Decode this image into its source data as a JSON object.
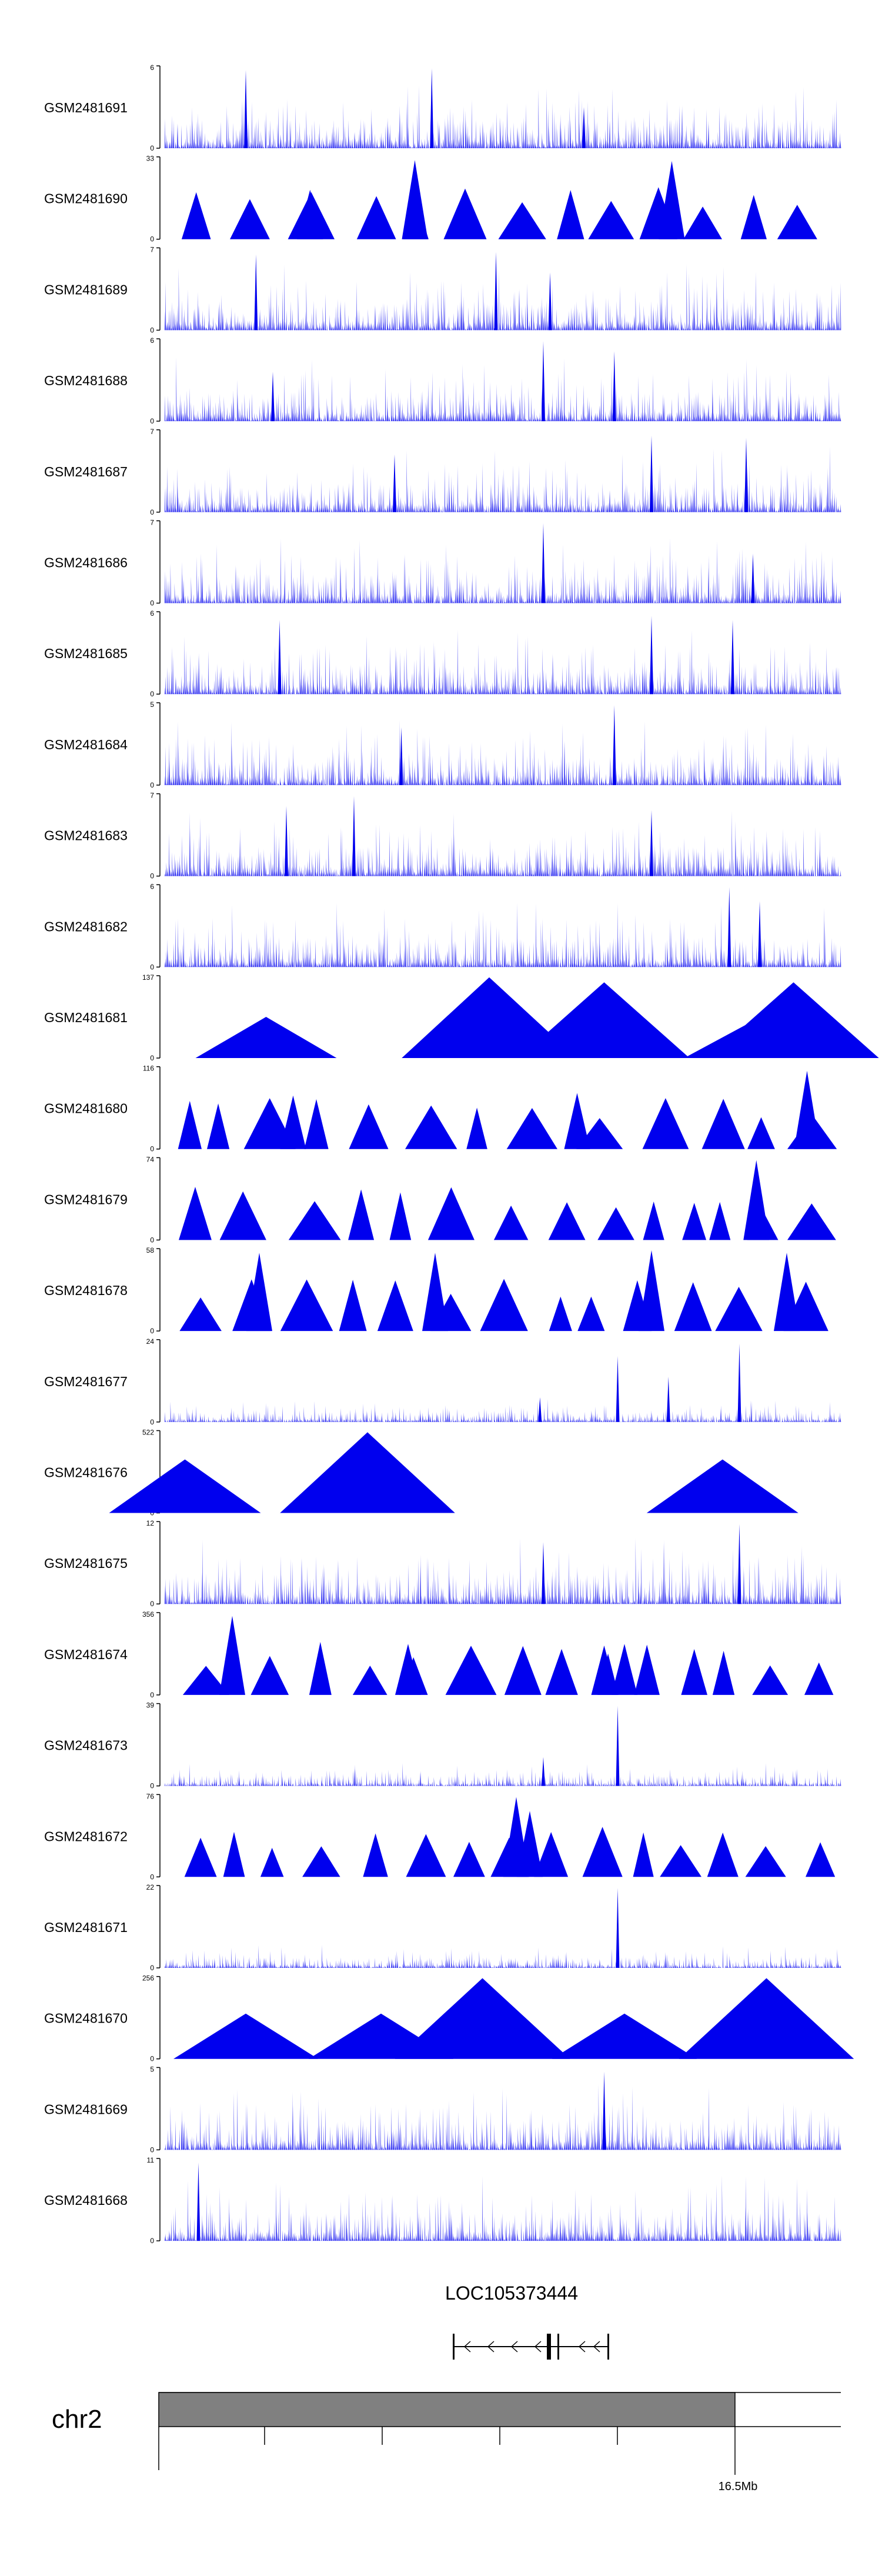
{
  "chart_data": {
    "type": "area",
    "title": "",
    "fill_color": "#0000EE",
    "tracks": [
      {
        "name": "GSM2481691",
        "ymax": "6",
        "ymin": "0",
        "style": "dense",
        "peaks": [
          {
            "x": 0.12,
            "h": 0.95
          },
          {
            "x": 0.395,
            "h": 0.97
          },
          {
            "x": 0.62,
            "h": 0.5
          }
        ]
      },
      {
        "name": "GSM2481690",
        "ymax": "33",
        "ymin": "0",
        "style": "triangles",
        "peaks": [
          {
            "x": 0.215,
            "h": 0.6
          },
          {
            "x": 0.37,
            "h": 0.96
          },
          {
            "x": 0.75,
            "h": 0.95
          }
        ]
      },
      {
        "name": "GSM2481689",
        "ymax": "7",
        "ymin": "0",
        "style": "dense",
        "peaks": [
          {
            "x": 0.135,
            "h": 0.92
          },
          {
            "x": 0.49,
            "h": 0.95
          },
          {
            "x": 0.57,
            "h": 0.7
          }
        ]
      },
      {
        "name": "GSM2481688",
        "ymax": "6",
        "ymin": "0",
        "style": "dense",
        "peaks": [
          {
            "x": 0.56,
            "h": 0.97
          },
          {
            "x": 0.665,
            "h": 0.85
          },
          {
            "x": 0.16,
            "h": 0.6
          }
        ]
      },
      {
        "name": "GSM2481687",
        "ymax": "7",
        "ymin": "0",
        "style": "dense",
        "peaks": [
          {
            "x": 0.72,
            "h": 0.93
          },
          {
            "x": 0.86,
            "h": 0.9
          },
          {
            "x": 0.34,
            "h": 0.7
          }
        ]
      },
      {
        "name": "GSM2481686",
        "ymax": "7",
        "ymin": "0",
        "style": "dense",
        "peaks": [
          {
            "x": 0.56,
            "h": 0.97
          },
          {
            "x": 0.87,
            "h": 0.6
          }
        ]
      },
      {
        "name": "GSM2481685",
        "ymax": "6",
        "ymin": "0",
        "style": "dense",
        "peaks": [
          {
            "x": 0.72,
            "h": 0.95
          },
          {
            "x": 0.84,
            "h": 0.9
          },
          {
            "x": 0.17,
            "h": 0.9
          }
        ]
      },
      {
        "name": "GSM2481684",
        "ymax": "5",
        "ymin": "0",
        "style": "dense",
        "peaks": [
          {
            "x": 0.665,
            "h": 0.97
          },
          {
            "x": 0.35,
            "h": 0.7
          }
        ]
      },
      {
        "name": "GSM2481683",
        "ymax": "7",
        "ymin": "0",
        "style": "dense",
        "peaks": [
          {
            "x": 0.28,
            "h": 0.97
          },
          {
            "x": 0.18,
            "h": 0.85
          },
          {
            "x": 0.72,
            "h": 0.8
          }
        ]
      },
      {
        "name": "GSM2481682",
        "ymax": "6",
        "ymin": "0",
        "style": "dense",
        "peaks": [
          {
            "x": 0.835,
            "h": 0.97
          },
          {
            "x": 0.88,
            "h": 0.8
          }
        ]
      },
      {
        "name": "GSM2481681",
        "ymax": "137",
        "ymin": "0",
        "style": "sparse",
        "peaks": [
          {
            "x": 0.15,
            "h": 0.5
          },
          {
            "x": 0.48,
            "h": 0.98
          },
          {
            "x": 0.65,
            "h": 0.92
          },
          {
            "x": 0.67,
            "h": 0.5
          },
          {
            "x": 0.87,
            "h": 0.45
          },
          {
            "x": 0.93,
            "h": 0.92
          }
        ]
      },
      {
        "name": "GSM2481680",
        "ymax": "116",
        "ymin": "0",
        "style": "triangles",
        "peaks": [
          {
            "x": 0.19,
            "h": 0.65
          },
          {
            "x": 0.61,
            "h": 0.68
          },
          {
            "x": 0.95,
            "h": 0.95
          }
        ]
      },
      {
        "name": "GSM2481679",
        "ymax": "74",
        "ymin": "0",
        "style": "triangles",
        "peaks": [
          {
            "x": 0.875,
            "h": 0.97
          }
        ]
      },
      {
        "name": "GSM2481678",
        "ymax": "58",
        "ymin": "0",
        "style": "triangles",
        "peaks": [
          {
            "x": 0.14,
            "h": 0.95
          },
          {
            "x": 0.4,
            "h": 0.95
          },
          {
            "x": 0.72,
            "h": 0.98
          },
          {
            "x": 0.92,
            "h": 0.95
          }
        ]
      },
      {
        "name": "GSM2481677",
        "ymax": "24",
        "ymin": "0",
        "style": "low",
        "peaks": [
          {
            "x": 0.67,
            "h": 0.8
          },
          {
            "x": 0.745,
            "h": 0.55
          },
          {
            "x": 0.85,
            "h": 0.95
          },
          {
            "x": 0.555,
            "h": 0.3
          }
        ]
      },
      {
        "name": "GSM2481676",
        "ymax": "522",
        "ymin": "0",
        "style": "sparse",
        "peaks": [
          {
            "x": 0.03,
            "h": 0.65
          },
          {
            "x": 0.3,
            "h": 0.98
          },
          {
            "x": 0.825,
            "h": 0.65
          }
        ]
      },
      {
        "name": "GSM2481675",
        "ymax": "12",
        "ymin": "0",
        "style": "dense",
        "peaks": [
          {
            "x": 0.85,
            "h": 0.97
          },
          {
            "x": 0.56,
            "h": 0.75
          }
        ]
      },
      {
        "name": "GSM2481674",
        "ymax": "356",
        "ymin": "0",
        "style": "triangles",
        "peaks": [
          {
            "x": 0.1,
            "h": 0.96
          },
          {
            "x": 0.36,
            "h": 0.62
          },
          {
            "x": 0.65,
            "h": 0.6
          },
          {
            "x": 0.68,
            "h": 0.62
          }
        ]
      },
      {
        "name": "GSM2481673",
        "ymax": "39",
        "ymin": "0",
        "style": "low",
        "peaks": [
          {
            "x": 0.67,
            "h": 0.97
          },
          {
            "x": 0.56,
            "h": 0.35
          }
        ]
      },
      {
        "name": "GSM2481672",
        "ymax": "76",
        "ymin": "0",
        "style": "triangles",
        "peaks": [
          {
            "x": 0.52,
            "h": 0.97
          },
          {
            "x": 0.54,
            "h": 0.8
          }
        ]
      },
      {
        "name": "GSM2481671",
        "ymax": "22",
        "ymin": "0",
        "style": "low",
        "peaks": [
          {
            "x": 0.67,
            "h": 0.97
          }
        ]
      },
      {
        "name": "GSM2481670",
        "ymax": "256",
        "ymin": "0",
        "style": "sparse",
        "peaks": [
          {
            "x": 0.12,
            "h": 0.55
          },
          {
            "x": 0.32,
            "h": 0.55
          },
          {
            "x": 0.47,
            "h": 0.98
          },
          {
            "x": 0.68,
            "h": 0.55
          },
          {
            "x": 0.89,
            "h": 0.98
          }
        ]
      },
      {
        "name": "GSM2481669",
        "ymax": "5",
        "ymin": "0",
        "style": "dense",
        "peaks": [
          {
            "x": 0.65,
            "h": 0.95
          }
        ]
      },
      {
        "name": "GSM2481668",
        "ymax": "11",
        "ymin": "0",
        "style": "dense",
        "peaks": [
          {
            "x": 0.05,
            "h": 0.95
          }
        ]
      }
    ],
    "gene": {
      "label": "LOC105373444",
      "strand": "-",
      "exons": [
        "exon 1",
        "exon 2",
        "exon 3",
        "exon 4"
      ]
    },
    "chromosome": {
      "name": "chr2",
      "tick_label": "16.5Mb",
      "band_fill": "#808080"
    }
  }
}
